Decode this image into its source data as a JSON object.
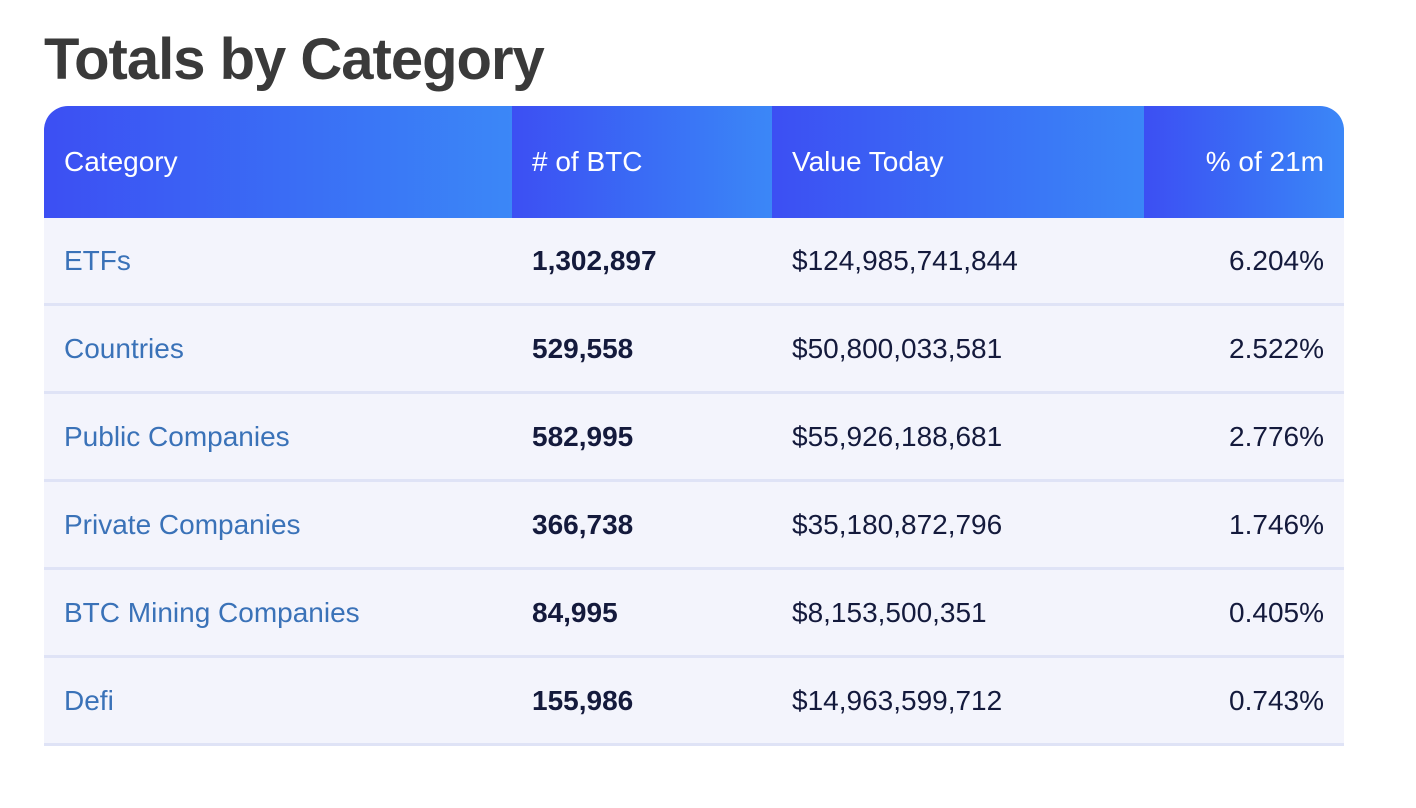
{
  "title": "Totals by Category",
  "table": {
    "headers": [
      "Category",
      "# of BTC",
      "Value Today",
      "% of 21m"
    ],
    "rows": [
      {
        "category": "ETFs",
        "btc": "1,302,897",
        "value": "$124,985,741,844",
        "pct": "6.204%"
      },
      {
        "category": "Countries",
        "btc": "529,558",
        "value": "$50,800,033,581",
        "pct": "2.522%"
      },
      {
        "category": "Public Companies",
        "btc": "582,995",
        "value": "$55,926,188,681",
        "pct": "2.776%"
      },
      {
        "category": "Private Companies",
        "btc": "366,738",
        "value": "$35,180,872,796",
        "pct": "1.746%"
      },
      {
        "category": "BTC Mining Companies",
        "btc": "84,995",
        "value": "$8,153,500,351",
        "pct": "0.405%"
      },
      {
        "category": "Defi",
        "btc": "155,986",
        "value": "$14,963,599,712",
        "pct": "0.743%"
      }
    ]
  },
  "colors": {
    "header_gradient_start": "#3c4ff3",
    "header_gradient_end": "#3b87f7",
    "row_background": "#f3f4fc",
    "link": "#3a72b8",
    "text": "#141a3c",
    "title": "#3a3a3a"
  }
}
